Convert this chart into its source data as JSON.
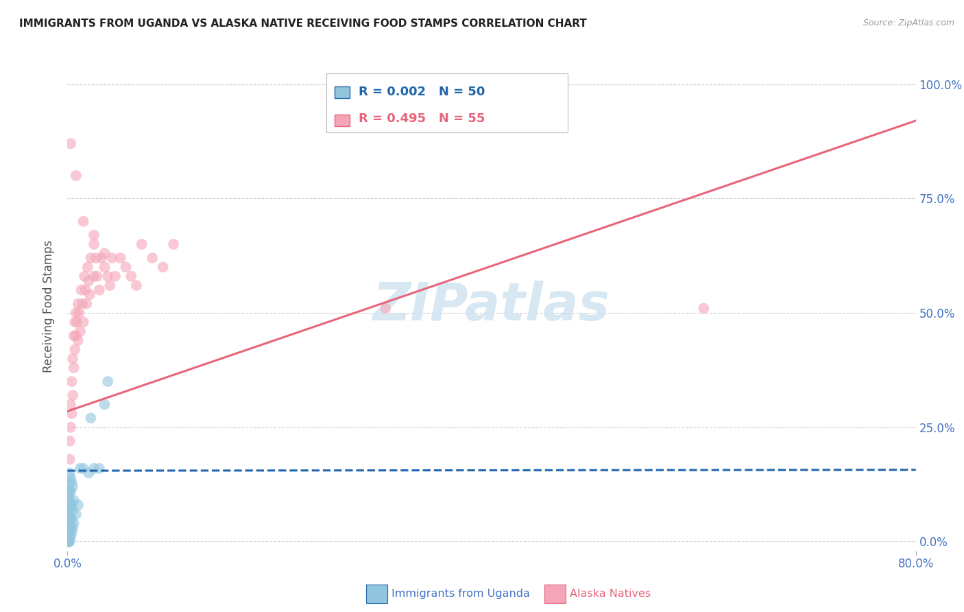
{
  "title": "IMMIGRANTS FROM UGANDA VS ALASKA NATIVE RECEIVING FOOD STAMPS CORRELATION CHART",
  "source": "Source: ZipAtlas.com",
  "ylabel": "Receiving Food Stamps",
  "legend_blue_R": "R = 0.002",
  "legend_blue_N": "N = 50",
  "legend_pink_R": "R = 0.495",
  "legend_pink_N": "N = 55",
  "legend_label_blue": "Immigrants from Uganda",
  "legend_label_pink": "Alaska Natives",
  "blue_color": "#92c5de",
  "pink_color": "#f4a6b8",
  "trend_blue_color": "#2166ac",
  "trend_pink_color": "#e8647a",
  "grid_color": "#cccccc",
  "background_color": "#ffffff",
  "title_color": "#222222",
  "axis_label_color": "#4472c4",
  "ylabel_color": "#555555",
  "watermark_color": "#d0e4f2",
  "xmin": 0.0,
  "xmax": 0.8,
  "ymin": -0.02,
  "ymax": 1.05,
  "blue_x": [
    0.001,
    0.001,
    0.001,
    0.001,
    0.001,
    0.001,
    0.001,
    0.001,
    0.001,
    0.001,
    0.001,
    0.001,
    0.001,
    0.001,
    0.001,
    0.002,
    0.002,
    0.002,
    0.002,
    0.002,
    0.002,
    0.002,
    0.002,
    0.002,
    0.002,
    0.003,
    0.003,
    0.003,
    0.003,
    0.003,
    0.003,
    0.004,
    0.004,
    0.004,
    0.004,
    0.005,
    0.005,
    0.005,
    0.006,
    0.006,
    0.008,
    0.01,
    0.012,
    0.015,
    0.02,
    0.022,
    0.025,
    0.03,
    0.035,
    0.038
  ],
  "blue_y": [
    0.0,
    0.0,
    0.0,
    0.01,
    0.01,
    0.02,
    0.03,
    0.04,
    0.05,
    0.06,
    0.07,
    0.08,
    0.09,
    0.1,
    0.11,
    0.0,
    0.01,
    0.02,
    0.03,
    0.05,
    0.07,
    0.09,
    0.11,
    0.13,
    0.15,
    0.01,
    0.03,
    0.05,
    0.08,
    0.11,
    0.14,
    0.02,
    0.05,
    0.08,
    0.13,
    0.03,
    0.07,
    0.12,
    0.04,
    0.09,
    0.06,
    0.08,
    0.16,
    0.16,
    0.15,
    0.27,
    0.16,
    0.16,
    0.3,
    0.35
  ],
  "pink_x": [
    0.002,
    0.002,
    0.003,
    0.003,
    0.004,
    0.004,
    0.005,
    0.005,
    0.006,
    0.006,
    0.007,
    0.007,
    0.008,
    0.008,
    0.009,
    0.01,
    0.01,
    0.011,
    0.012,
    0.013,
    0.014,
    0.015,
    0.016,
    0.017,
    0.018,
    0.019,
    0.02,
    0.021,
    0.022,
    0.025,
    0.025,
    0.027,
    0.028,
    0.03,
    0.032,
    0.035,
    0.038,
    0.04,
    0.042,
    0.045,
    0.05,
    0.055,
    0.06,
    0.065,
    0.07,
    0.08,
    0.09,
    0.1,
    0.3,
    0.6,
    0.003,
    0.008,
    0.015,
    0.025,
    0.035
  ],
  "pink_y": [
    0.18,
    0.22,
    0.25,
    0.3,
    0.28,
    0.35,
    0.32,
    0.4,
    0.38,
    0.45,
    0.42,
    0.48,
    0.45,
    0.5,
    0.48,
    0.44,
    0.52,
    0.5,
    0.46,
    0.55,
    0.52,
    0.48,
    0.58,
    0.55,
    0.52,
    0.6,
    0.57,
    0.54,
    0.62,
    0.58,
    0.65,
    0.62,
    0.58,
    0.55,
    0.62,
    0.6,
    0.58,
    0.56,
    0.62,
    0.58,
    0.62,
    0.6,
    0.58,
    0.56,
    0.65,
    0.62,
    0.6,
    0.65,
    0.51,
    0.51,
    0.87,
    0.8,
    0.7,
    0.67,
    0.63
  ],
  "blue_trend_x": [
    0.0,
    0.8
  ],
  "blue_trend_y": [
    0.155,
    0.157
  ],
  "pink_trend_x": [
    0.0,
    0.8
  ],
  "pink_trend_y": [
    0.285,
    0.92
  ]
}
